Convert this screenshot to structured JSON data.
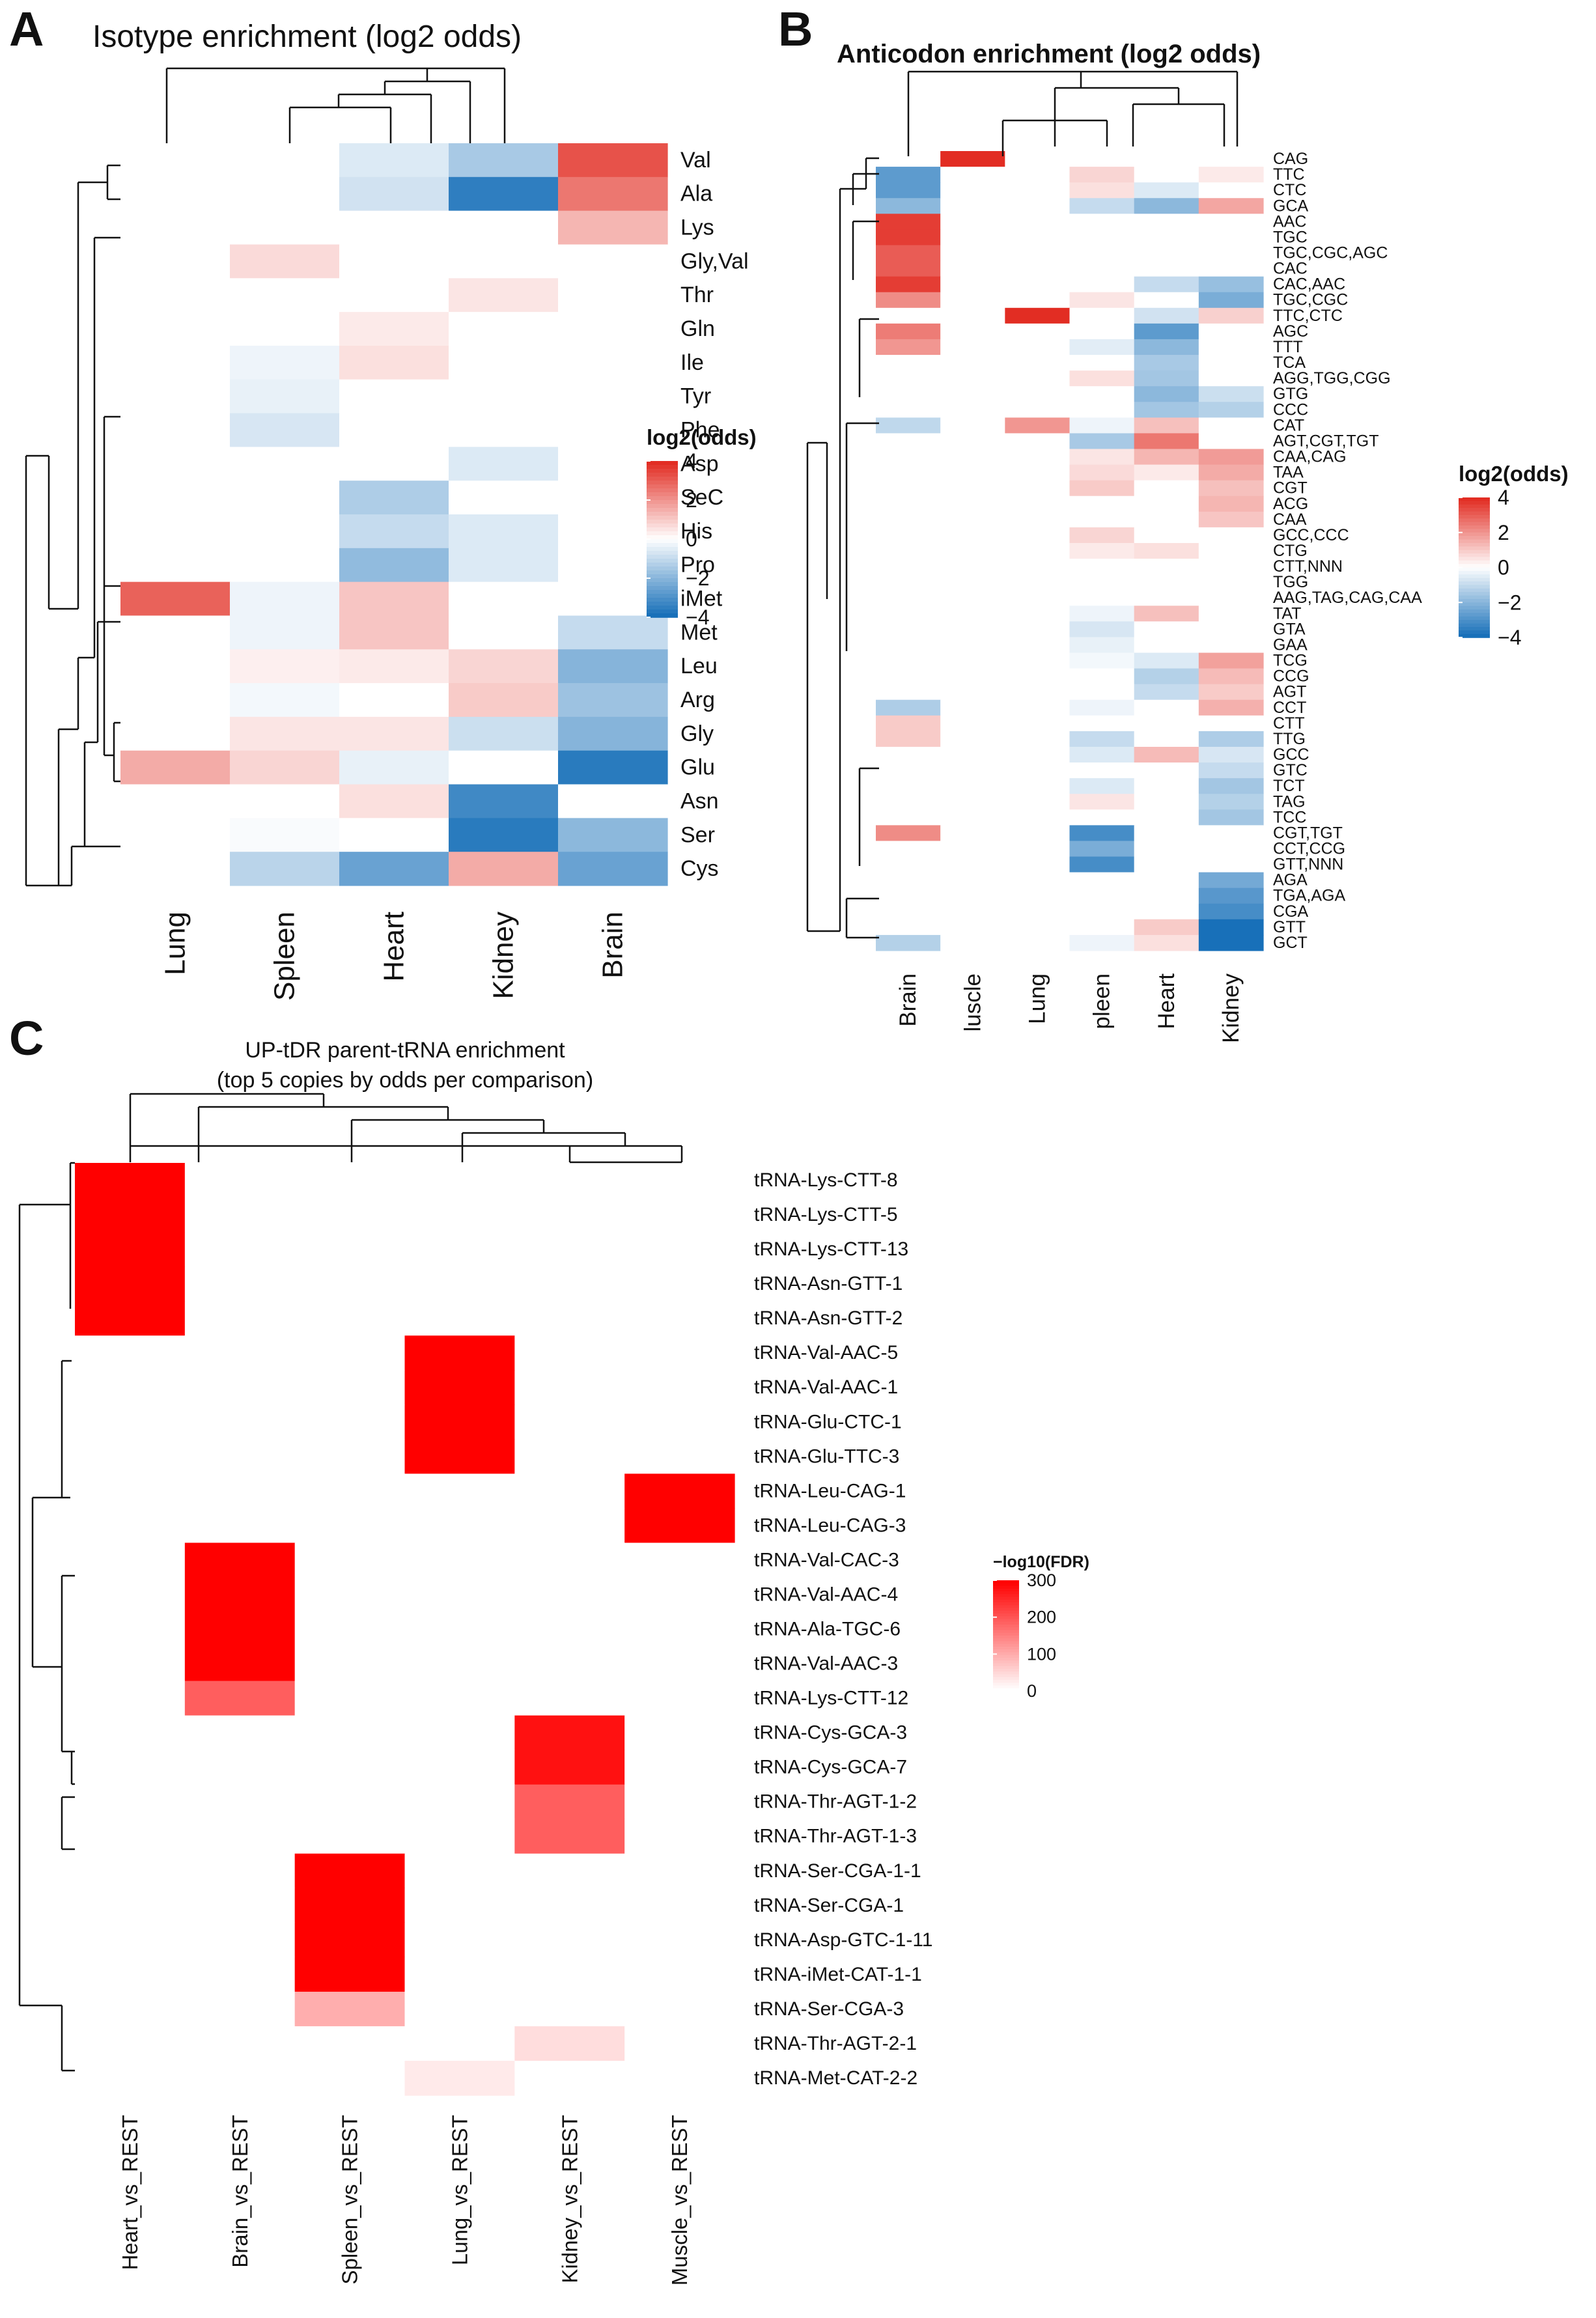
{
  "panel_labels": [
    "A",
    "B",
    "C"
  ],
  "chart_data": [
    {
      "type": "heatmap",
      "panel": "A",
      "title": "Isotype enrichment (log2 odds)",
      "columns": [
        "Lung",
        "Spleen",
        "Heart",
        "Kidney",
        "Brain"
      ],
      "rows": [
        "Val",
        "Ala",
        "Lys",
        "Gly,Val",
        "Thr",
        "Gln",
        "Ile",
        "Tyr",
        "Phe",
        "Asp",
        "SeC",
        "His",
        "Pro",
        "iMet",
        "Met",
        "Leu",
        "Arg",
        "Gly",
        "Glu",
        "Asn",
        "Ser",
        "Cys"
      ],
      "values": [
        [
          0,
          0,
          -0.6,
          -1.5,
          3.3
        ],
        [
          0,
          0,
          -0.8,
          -3.6,
          2.6
        ],
        [
          0,
          0,
          0,
          0,
          1.4
        ],
        [
          0,
          0.7,
          0,
          0,
          0
        ],
        [
          0,
          0,
          0,
          0.5,
          0
        ],
        [
          0,
          0,
          0.4,
          0,
          0
        ],
        [
          0,
          -0.3,
          0.6,
          0,
          0
        ],
        [
          0,
          -0.4,
          0,
          0,
          0
        ],
        [
          0,
          -0.7,
          0,
          0,
          0
        ],
        [
          0,
          0,
          0,
          -0.6,
          0
        ],
        [
          0,
          0,
          -1.4,
          0,
          0
        ],
        [
          0,
          0,
          -1.0,
          -0.6,
          0
        ],
        [
          0,
          0,
          -1.9,
          -0.6,
          0
        ],
        [
          3.0,
          -0.3,
          1.1,
          0,
          0
        ],
        [
          0,
          -0.3,
          1.1,
          0,
          -1.0
        ],
        [
          0,
          0.3,
          0.4,
          0.8,
          -2.1
        ],
        [
          0,
          -0.2,
          0,
          1.0,
          -1.7
        ],
        [
          0,
          0.5,
          0.5,
          -0.9,
          -2.1
        ],
        [
          1.6,
          0.8,
          -0.4,
          0,
          -3.7
        ],
        [
          0,
          0,
          0.6,
          -3.3,
          0
        ],
        [
          0,
          -0.1,
          0,
          -3.7,
          -2.0
        ],
        [
          0,
          -1.2,
          -2.6,
          1.6,
          -2.6
        ]
      ],
      "legend": {
        "title": "log2(odds)",
        "ticks": [
          "4",
          "2",
          "0",
          "−2",
          "−4"
        ],
        "range": [
          -4,
          4
        ]
      }
    },
    {
      "type": "heatmap",
      "panel": "B",
      "title": "Anticodon enrichment (log2 odds)",
      "columns": [
        "Brain",
        "luscle",
        "Lung",
        "pleen",
        "Heart",
        "Kidney"
      ],
      "rows": [
        "CAG",
        "TTC",
        "CTC",
        "GCA",
        "AAC",
        "TGC",
        "TGC,CGC,AGC",
        "CAC",
        "CAC,AAC",
        "TGC,CGC",
        "TTC,CTC",
        "AGC",
        "TTT",
        "TCA",
        "AGG,TGG,CGG",
        "GTG",
        "CCC",
        "CAT",
        "AGT,CGT,TGT",
        "CAA,CAG",
        "TAA",
        "CGT",
        "ACG",
        "CAA",
        "GCC,CCC",
        "CTG",
        "CTT,NNN",
        "TGG",
        "AAG,TAG,CAG,CAA",
        "TAT",
        "GTA",
        "GAA",
        "TCG",
        "CCG",
        "AGT",
        "CCT",
        "CTT",
        "TTG",
        "GCC",
        "GTC",
        "TCT",
        "TAG",
        "TCC",
        "CGT,TGT",
        "CCT,CCG",
        "GTT,NNN",
        "AGA",
        "TGA,AGA",
        "CGA",
        "GTT",
        "GCT"
      ],
      "values": [
        [
          0,
          4.0,
          0,
          0,
          0,
          0
        ],
        [
          -2.8,
          0,
          0,
          0.8,
          0,
          0.4
        ],
        [
          -2.8,
          0,
          0,
          0.6,
          -0.6,
          0
        ],
        [
          -2.0,
          0,
          0,
          -1.0,
          -2.0,
          1.7
        ],
        [
          3.7,
          0,
          0,
          0,
          0,
          0
        ],
        [
          3.7,
          0,
          0,
          0,
          0,
          0
        ],
        [
          3.1,
          0,
          0,
          0,
          0,
          0
        ],
        [
          3.1,
          0,
          0,
          0,
          0,
          0
        ],
        [
          3.7,
          0,
          0,
          0,
          -1.0,
          -1.8
        ],
        [
          2.2,
          0,
          0,
          0.5,
          0,
          -2.3
        ],
        [
          0,
          0,
          4.0,
          0,
          -0.8,
          0.9
        ],
        [
          2.5,
          0,
          0,
          0,
          -2.8,
          0
        ],
        [
          2.0,
          0,
          0,
          -0.5,
          -2.0,
          0
        ],
        [
          0,
          0,
          0,
          0,
          -1.5,
          0
        ],
        [
          0,
          0,
          0,
          0.6,
          -1.6,
          0
        ],
        [
          0,
          0,
          0,
          0,
          -2.0,
          -0.9
        ],
        [
          0,
          0,
          0,
          0,
          -1.6,
          -1.3
        ],
        [
          -1.1,
          0,
          2.0,
          -0.3,
          1.2,
          0
        ],
        [
          0,
          0,
          0,
          -1.5,
          2.6,
          0
        ],
        [
          0,
          0,
          0,
          0.5,
          1.4,
          1.9
        ],
        [
          0,
          0,
          0,
          0.7,
          0.4,
          1.6
        ],
        [
          0,
          0,
          0,
          1.0,
          0,
          1.2
        ],
        [
          0,
          0,
          0,
          0,
          0,
          1.4
        ],
        [
          0,
          0,
          0,
          0,
          0,
          1.1
        ],
        [
          0,
          0,
          0,
          0.8,
          0,
          0
        ],
        [
          0,
          0,
          0,
          0.4,
          0.6,
          0
        ],
        [
          0,
          0,
          0,
          0,
          0,
          0
        ],
        [
          0,
          0,
          0,
          0,
          0,
          0
        ],
        [
          0,
          0,
          0,
          0,
          0,
          0
        ],
        [
          0,
          0,
          0,
          -0.3,
          1.2,
          0
        ],
        [
          0,
          0,
          0,
          -0.7,
          0,
          0
        ],
        [
          0,
          0,
          0,
          -0.4,
          0,
          0
        ],
        [
          0,
          0,
          0,
          -0.2,
          -0.6,
          1.8
        ],
        [
          0,
          0,
          0,
          0,
          -1.3,
          1.3
        ],
        [
          0,
          0,
          0,
          0,
          -1.0,
          1.0
        ],
        [
          -1.4,
          0,
          0,
          -0.3,
          0,
          1.5
        ],
        [
          1.0,
          0,
          0,
          0,
          0,
          0
        ],
        [
          1.0,
          0,
          0,
          -1.0,
          0,
          -1.4
        ],
        [
          0,
          0,
          0,
          -0.6,
          1.3,
          -0.7
        ],
        [
          0,
          0,
          0,
          0,
          0,
          -1.0
        ],
        [
          0,
          0,
          0,
          -0.6,
          0,
          -1.6
        ],
        [
          0,
          0,
          0,
          0.5,
          0,
          -1.3
        ],
        [
          0,
          0,
          0,
          0,
          0,
          -1.6
        ],
        [
          2.2,
          0,
          0,
          -3.2,
          0,
          0
        ],
        [
          0,
          0,
          0,
          -2.3,
          0,
          0
        ],
        [
          0,
          0,
          0,
          -3.2,
          0,
          0
        ],
        [
          0,
          0,
          0,
          0,
          0,
          -2.4
        ],
        [
          0,
          0,
          0,
          0,
          0,
          -2.9
        ],
        [
          0,
          0,
          0,
          0,
          0,
          -3.2
        ],
        [
          0,
          0,
          0,
          0,
          1.0,
          -4.0
        ],
        [
          -1.3,
          0,
          0,
          -0.3,
          0.6,
          -4.0
        ]
      ],
      "legend": {
        "title": "log2(odds)",
        "ticks": [
          "4",
          "2",
          "0",
          "−2",
          "−4"
        ],
        "range": [
          -4,
          4
        ]
      }
    },
    {
      "type": "heatmap",
      "panel": "C",
      "title": "UP-tDR parent-tRNA enrichment",
      "subtitle": "(top 5 copies by odds per comparison)",
      "columns": [
        "Heart_vs_REST",
        "Brain_vs_REST",
        "Spleen_vs_REST",
        "Lung_vs_REST",
        "Kidney_vs_REST",
        "Muscle_vs_REST"
      ],
      "rows": [
        "tRNA-Lys-CTT-8",
        "tRNA-Lys-CTT-5",
        "tRNA-Lys-CTT-13",
        "tRNA-Asn-GTT-1",
        "tRNA-Asn-GTT-2",
        "tRNA-Val-AAC-5",
        "tRNA-Val-AAC-1",
        "tRNA-Glu-CTC-1",
        "tRNA-Glu-TTC-3",
        "tRNA-Leu-CAG-1",
        "tRNA-Leu-CAG-3",
        "tRNA-Val-CAC-3",
        "tRNA-Val-AAC-4",
        "tRNA-Ala-TGC-6",
        "tRNA-Val-AAC-3",
        "tRNA-Lys-CTT-12",
        "tRNA-Cys-GCA-3",
        "tRNA-Cys-GCA-7",
        "tRNA-Thr-AGT-1-2",
        "tRNA-Thr-AGT-1-3",
        "tRNA-Ser-CGA-1-1",
        "tRNA-Ser-CGA-1",
        "tRNA-Asp-GTC-1-11",
        "tRNA-iMet-CAT-1-1",
        "tRNA-Ser-CGA-3",
        "tRNA-Thr-AGT-2-1",
        "tRNA-Met-CAT-2-2"
      ],
      "values": [
        [
          300,
          0,
          0,
          0,
          0,
          0
        ],
        [
          300,
          0,
          0,
          0,
          0,
          0
        ],
        [
          300,
          0,
          0,
          0,
          0,
          0
        ],
        [
          300,
          0,
          0,
          0,
          0,
          0
        ],
        [
          300,
          0,
          0,
          0,
          0,
          0
        ],
        [
          0,
          0,
          0,
          300,
          0,
          0
        ],
        [
          0,
          0,
          0,
          300,
          0,
          0
        ],
        [
          0,
          0,
          0,
          300,
          0,
          0
        ],
        [
          0,
          0,
          0,
          300,
          0,
          0
        ],
        [
          0,
          0,
          0,
          0,
          0,
          300
        ],
        [
          0,
          0,
          0,
          0,
          0,
          300
        ],
        [
          0,
          300,
          0,
          0,
          0,
          0
        ],
        [
          0,
          300,
          0,
          0,
          0,
          0
        ],
        [
          0,
          300,
          0,
          0,
          0,
          0
        ],
        [
          0,
          300,
          0,
          0,
          0,
          0
        ],
        [
          0,
          190,
          0,
          0,
          0,
          0
        ],
        [
          0,
          0,
          0,
          0,
          280,
          0
        ],
        [
          0,
          0,
          0,
          0,
          280,
          0
        ],
        [
          0,
          0,
          0,
          0,
          190,
          0
        ],
        [
          0,
          0,
          0,
          0,
          190,
          0
        ],
        [
          0,
          0,
          300,
          0,
          0,
          0
        ],
        [
          0,
          0,
          300,
          0,
          0,
          0
        ],
        [
          0,
          0,
          300,
          0,
          0,
          0
        ],
        [
          0,
          0,
          300,
          0,
          0,
          0
        ],
        [
          0,
          0,
          95,
          0,
          0,
          0
        ],
        [
          0,
          0,
          0,
          0,
          40,
          0
        ],
        [
          0,
          0,
          0,
          25,
          0,
          0
        ]
      ],
      "legend": {
        "title": "−log10(FDR)",
        "ticks": [
          "300",
          "200",
          "100",
          "0"
        ],
        "range": [
          0,
          300
        ]
      }
    }
  ]
}
